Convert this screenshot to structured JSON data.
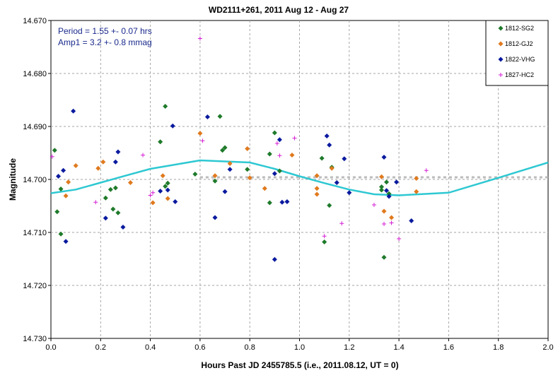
{
  "chart_data": {
    "type": "scatter",
    "title": "WD2111+261,  2011 Aug 12 - Aug 27",
    "xlabel": "Hours Past JD 2455785.5 (i.e., 2011.08.12, UT = 0)",
    "ylabel": "Magnitude",
    "xlim": [
      0,
      2.0
    ],
    "ylim": [
      14.67,
      14.73
    ],
    "y_inverted": true,
    "grid": true,
    "x_tick_labels": [
      "0.0",
      "0.2",
      "0.4",
      "0.6",
      "0.8",
      "1.0",
      "1.2",
      "1.4",
      "1.6",
      "1.8",
      "2.0"
    ],
    "y_tick_labels": [
      "14.670",
      "14.680",
      "14.690",
      "14.700",
      "14.710",
      "14.720",
      "14.730"
    ],
    "annotations": [
      "Period = 1.55 +- 0.07 hrs",
      "Amp1 = 3.2 +- 0.8 mmag"
    ],
    "legend_position": "top-right",
    "mean_line": {
      "y": 14.6996,
      "color": "#bbbbbb",
      "style": "dashed"
    },
    "fit": {
      "color": "#2ec8d2",
      "points": [
        [
          0.0,
          14.7026
        ],
        [
          0.1,
          14.7019
        ],
        [
          0.2,
          14.7006
        ],
        [
          0.3,
          14.6993
        ],
        [
          0.4,
          14.698
        ],
        [
          0.5,
          14.6972
        ],
        [
          0.6,
          14.6964
        ],
        [
          0.7,
          14.6966
        ],
        [
          0.8,
          14.6968
        ],
        [
          0.9,
          14.698
        ],
        [
          1.0,
          14.6994
        ],
        [
          1.1,
          14.7007
        ],
        [
          1.2,
          14.7019
        ],
        [
          1.3,
          14.7028
        ],
        [
          1.4,
          14.703
        ],
        [
          1.6,
          14.7025
        ],
        [
          1.8,
          14.6997
        ],
        [
          2.0,
          14.6968
        ]
      ]
    },
    "series": [
      {
        "name": "1812-SG2",
        "color": "#1e7a2a",
        "marker": "diamond",
        "points": [
          [
            0.015,
            14.6945
          ],
          [
            0.025,
            14.7061
          ],
          [
            0.04,
            14.7103
          ],
          [
            0.04,
            14.7018
          ],
          [
            0.22,
            14.7035
          ],
          [
            0.24,
            14.7019
          ],
          [
            0.25,
            14.7056
          ],
          [
            0.26,
            14.7016
          ],
          [
            0.27,
            14.7063
          ],
          [
            0.44,
            14.6929
          ],
          [
            0.46,
            14.7013
          ],
          [
            0.46,
            14.6862
          ],
          [
            0.47,
            14.7007
          ],
          [
            0.58,
            14.699
          ],
          [
            0.66,
            14.7003
          ],
          [
            0.68,
            14.6881
          ],
          [
            0.69,
            14.6945
          ],
          [
            0.7,
            14.694
          ],
          [
            0.79,
            14.6981
          ],
          [
            0.88,
            14.6952
          ],
          [
            0.88,
            14.7044
          ],
          [
            0.9,
            14.6912
          ],
          [
            0.92,
            14.6984
          ],
          [
            1.09,
            14.696
          ],
          [
            1.1,
            14.7118
          ],
          [
            1.12,
            14.7049
          ],
          [
            1.13,
            14.6977
          ],
          [
            1.33,
            14.702
          ],
          [
            1.33,
            14.7014
          ],
          [
            1.34,
            14.7147
          ],
          [
            1.35,
            14.7005
          ],
          [
            1.36,
            14.7027
          ]
        ]
      },
      {
        "name": "1812-GJ2",
        "color": "#e07a1e",
        "marker": "diamond",
        "points": [
          [
            0.06,
            14.7031
          ],
          [
            0.07,
            14.7005
          ],
          [
            0.1,
            14.6974
          ],
          [
            0.19,
            14.6979
          ],
          [
            0.21,
            14.6967
          ],
          [
            0.32,
            14.7006
          ],
          [
            0.41,
            14.7044
          ],
          [
            0.45,
            14.6993
          ],
          [
            0.47,
            14.7036
          ],
          [
            0.6,
            14.6913
          ],
          [
            0.66,
            14.6993
          ],
          [
            0.72,
            14.697
          ],
          [
            0.79,
            14.6942
          ],
          [
            0.8,
            14.6997
          ],
          [
            0.86,
            14.7017
          ],
          [
            0.97,
            14.6954
          ],
          [
            1.07,
            14.7017
          ],
          [
            1.07,
            14.6993
          ],
          [
            1.07,
            14.7028
          ],
          [
            1.13,
            14.6979
          ],
          [
            1.33,
            14.6995
          ],
          [
            1.34,
            14.706
          ],
          [
            1.37,
            14.7072
          ],
          [
            1.47,
            14.6998
          ],
          [
            1.47,
            14.7023
          ]
        ]
      },
      {
        "name": "1822-VHG",
        "color": "#0a1a9e",
        "marker": "diamond",
        "points": [
          [
            0.03,
            14.6994
          ],
          [
            0.05,
            14.6983
          ],
          [
            0.06,
            14.7117
          ],
          [
            0.09,
            14.6871
          ],
          [
            0.22,
            14.7073
          ],
          [
            0.26,
            14.6967
          ],
          [
            0.27,
            14.6948
          ],
          [
            0.29,
            14.709
          ],
          [
            0.44,
            14.7022
          ],
          [
            0.47,
            14.702
          ],
          [
            0.49,
            14.6899
          ],
          [
            0.5,
            14.7042
          ],
          [
            0.63,
            14.6882
          ],
          [
            0.66,
            14.7072
          ],
          [
            0.7,
            14.7023
          ],
          [
            0.72,
            14.6981
          ],
          [
            0.9,
            14.7151
          ],
          [
            0.9,
            14.6989
          ],
          [
            0.92,
            14.6925
          ],
          [
            0.93,
            14.7043
          ],
          [
            0.95,
            14.7042
          ],
          [
            1.11,
            14.6918
          ],
          [
            1.12,
            14.6935
          ],
          [
            1.15,
            14.7006
          ],
          [
            1.18,
            14.6961
          ],
          [
            1.2,
            14.7025
          ],
          [
            1.34,
            14.6958
          ],
          [
            1.35,
            14.7021
          ],
          [
            1.36,
            14.7032
          ],
          [
            1.39,
            14.7005
          ],
          [
            1.45,
            14.7078
          ]
        ]
      },
      {
        "name": "1827-HC2",
        "color": "#d41ed4",
        "marker": "plus",
        "points": [
          [
            0.005,
            14.6957
          ],
          [
            0.18,
            14.7043
          ],
          [
            0.37,
            14.6954
          ],
          [
            0.4,
            14.703
          ],
          [
            0.41,
            14.7025
          ],
          [
            0.6,
            14.6734
          ],
          [
            0.61,
            14.6927
          ],
          [
            0.91,
            14.6932
          ],
          [
            0.92,
            14.6955
          ],
          [
            0.98,
            14.6922
          ],
          [
            1.1,
            14.7107
          ],
          [
            1.17,
            14.7083
          ],
          [
            1.3,
            14.7048
          ],
          [
            1.34,
            14.7084
          ],
          [
            1.37,
            14.7082
          ],
          [
            1.4,
            14.7112
          ],
          [
            1.51,
            14.6983
          ]
        ]
      }
    ]
  }
}
